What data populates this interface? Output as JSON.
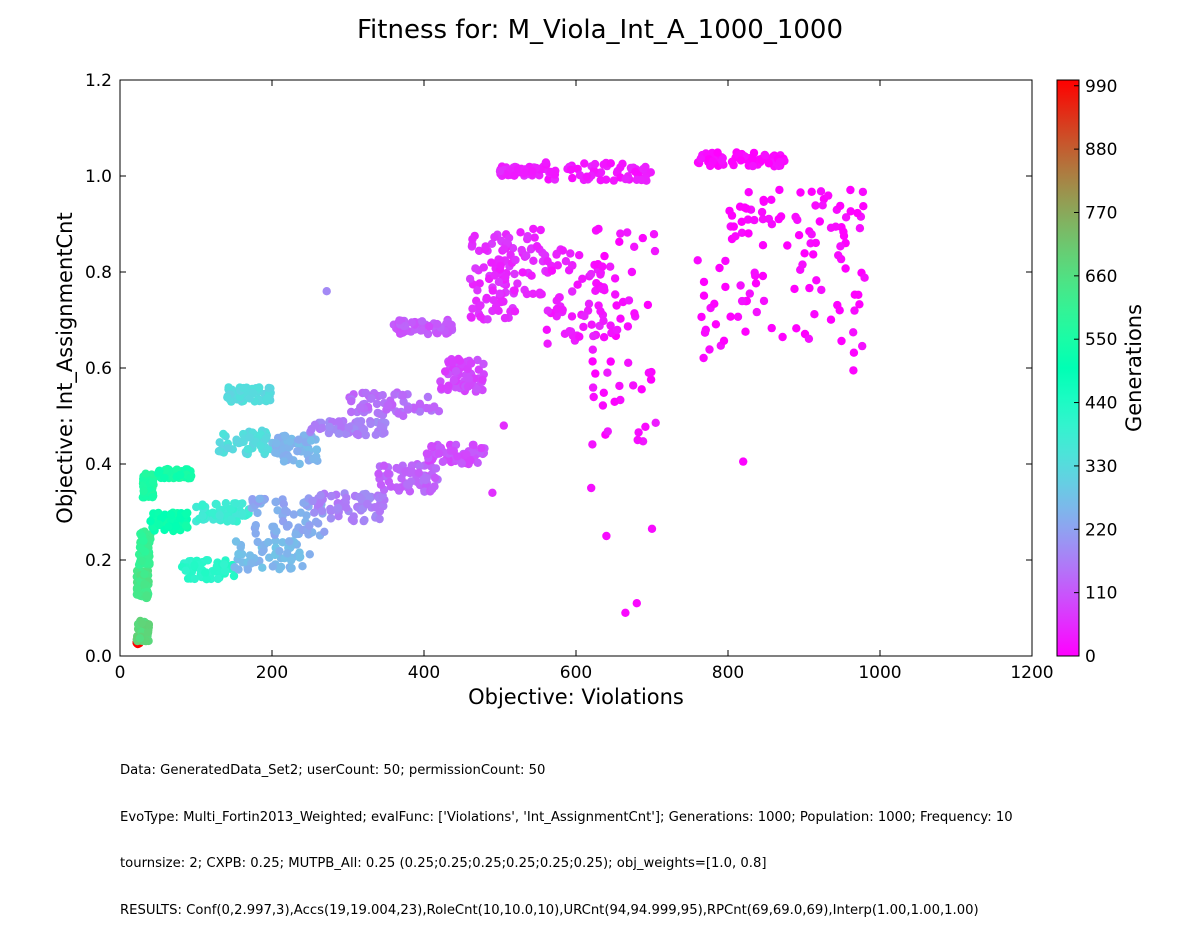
{
  "chart_data": {
    "type": "scatter",
    "title": "Fitness for: M_Viola_Int_A_1000_1000",
    "xlabel": "Objective: Violations",
    "ylabel": "Objective: Int_AssignmentCnt",
    "xlim": [
      0,
      1200
    ],
    "ylim": [
      0,
      1.2
    ],
    "xticks": [
      "0",
      "200",
      "400",
      "600",
      "800",
      "1000",
      "1200"
    ],
    "yticks": [
      "0.0",
      "0.2",
      "0.4",
      "0.6",
      "0.8",
      "1.0",
      "1.2"
    ],
    "grid": false,
    "colorbar": {
      "label": "Generations",
      "range": [
        0,
        1000
      ],
      "ticks": [
        "0",
        "110",
        "220",
        "330",
        "440",
        "550",
        "660",
        "770",
        "880",
        "990"
      ],
      "colormap": "rainbow"
    },
    "clusters": [
      {
        "x": [
          22,
          26
        ],
        "y": [
          0.025,
          0.035
        ],
        "gen": 999
      },
      {
        "x": [
          22,
          38
        ],
        "y": [
          0.03,
          0.075
        ],
        "gen": 680
      },
      {
        "x": [
          22,
          38
        ],
        "y": [
          0.12,
          0.18
        ],
        "gen": 640
      },
      {
        "x": [
          25,
          40
        ],
        "y": [
          0.19,
          0.26
        ],
        "gen": 600
      },
      {
        "x": [
          30,
          45
        ],
        "y": [
          0.33,
          0.38
        ],
        "gen": 560
      },
      {
        "x": [
          40,
          90
        ],
        "y": [
          0.26,
          0.3
        ],
        "gen": 520
      },
      {
        "x": [
          50,
          95
        ],
        "y": [
          0.37,
          0.39
        ],
        "gen": 540
      },
      {
        "x": [
          80,
          150
        ],
        "y": [
          0.16,
          0.2
        ],
        "gen": 420
      },
      {
        "x": [
          100,
          170
        ],
        "y": [
          0.28,
          0.32
        ],
        "gen": 380
      },
      {
        "x": [
          140,
          200
        ],
        "y": [
          0.53,
          0.56
        ],
        "gen": 330
      },
      {
        "x": [
          130,
          200
        ],
        "y": [
          0.42,
          0.47
        ],
        "gen": 330
      },
      {
        "x": [
          150,
          250
        ],
        "y": [
          0.18,
          0.24
        ],
        "gen": 260
      },
      {
        "x": [
          170,
          270
        ],
        "y": [
          0.25,
          0.33
        ],
        "gen": 230
      },
      {
        "x": [
          200,
          260
        ],
        "y": [
          0.4,
          0.46
        ],
        "gen": 250
      },
      {
        "x": [
          250,
          350
        ],
        "y": [
          0.28,
          0.34
        ],
        "gen": 170
      },
      {
        "x": [
          250,
          350
        ],
        "y": [
          0.46,
          0.49
        ],
        "gen": 170
      },
      {
        "x": [
          340,
          420
        ],
        "y": [
          0.34,
          0.4
        ],
        "gen": 130
      },
      {
        "x": [
          300,
          420
        ],
        "y": [
          0.5,
          0.55
        ],
        "gen": 140
      },
      {
        "x": [
          360,
          440
        ],
        "y": [
          0.67,
          0.7
        ],
        "gen": 110
      },
      {
        "x": [
          400,
          480
        ],
        "y": [
          0.4,
          0.44
        ],
        "gen": 100
      },
      {
        "x": [
          420,
          480
        ],
        "y": [
          0.55,
          0.62
        ],
        "gen": 90
      },
      {
        "x": [
          460,
          520
        ],
        "y": [
          0.7,
          0.88
        ],
        "gen": 60
      },
      {
        "x": [
          480,
          560
        ],
        "y": [
          0.75,
          0.9
        ],
        "gen": 50
      },
      {
        "x": [
          500,
          560
        ],
        "y": [
          1.0,
          1.02
        ],
        "gen": 45
      },
      {
        "x": [
          560,
          640
        ],
        "y": [
          0.65,
          0.85
        ],
        "gen": 35
      },
      {
        "x": [
          560,
          700
        ],
        "y": [
          0.99,
          1.03
        ],
        "gen": 30
      },
      {
        "x": [
          620,
          705
        ],
        "y": [
          0.42,
          0.9
        ],
        "gen": 15
      },
      {
        "x": [
          760,
          880
        ],
        "y": [
          1.02,
          1.05
        ],
        "gen": 5
      },
      {
        "x": [
          800,
          980
        ],
        "y": [
          0.85,
          0.98
        ],
        "gen": 5
      },
      {
        "x": [
          760,
          980
        ],
        "y": [
          0.62,
          0.84
        ],
        "gen": 5
      }
    ],
    "outliers": [
      {
        "x": 272,
        "y": 0.76,
        "gen": 180
      },
      {
        "x": 665,
        "y": 0.09,
        "gen": 10
      },
      {
        "x": 680,
        "y": 0.11,
        "gen": 10
      },
      {
        "x": 820,
        "y": 0.405,
        "gen": 5
      },
      {
        "x": 965,
        "y": 0.595,
        "gen": 5
      },
      {
        "x": 640,
        "y": 0.25,
        "gen": 15
      },
      {
        "x": 700,
        "y": 0.265,
        "gen": 15
      },
      {
        "x": 620,
        "y": 0.35,
        "gen": 20
      },
      {
        "x": 490,
        "y": 0.34,
        "gen": 60
      },
      {
        "x": 505,
        "y": 0.48,
        "gen": 55
      }
    ]
  },
  "footer": {
    "line1": "Data: GeneratedData_Set2; userCount: 50; permissionCount: 50",
    "line2": "EvoType: Multi_Fortin2013_Weighted; evalFunc: ['Violations', 'Int_AssignmentCnt']; Generations: 1000; Population: 1000; Frequency: 10",
    "line3": "tournsize: 2; CXPB: 0.25; MUTPB_All: 0.25 (0.25;0.25;0.25;0.25;0.25;0.25); obj_weights=[1.0, 0.8]",
    "line4": "RESULTS: Conf(0,2.997,3),Accs(19,19.004,23),RoleCnt(10,10.0,10),URCnt(94,94.999,95),RPCnt(69,69.0,69),Interp(1.00,1.00,1.00)"
  }
}
